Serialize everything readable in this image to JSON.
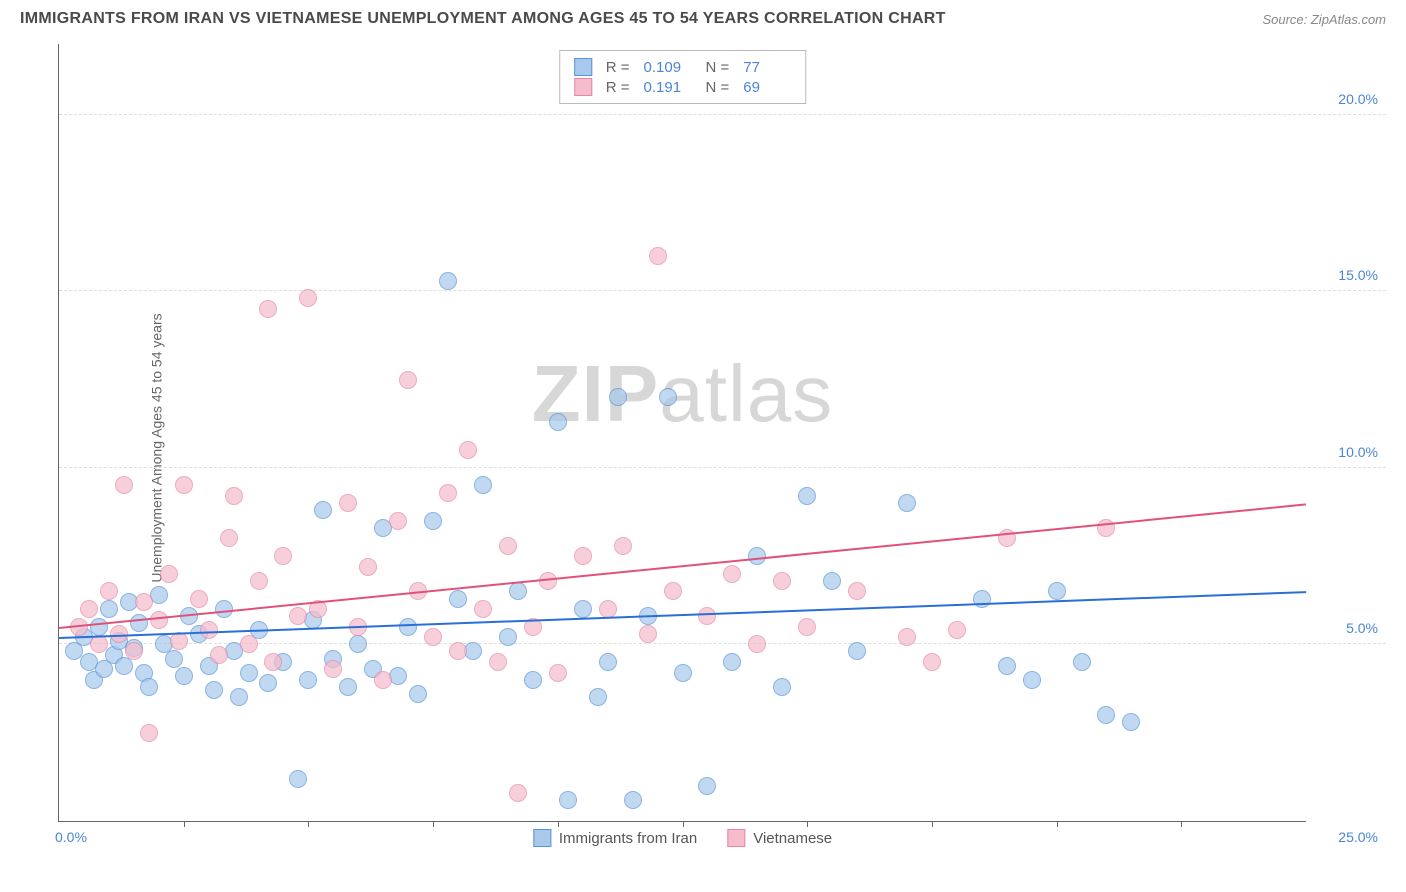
{
  "title": "IMMIGRANTS FROM IRAN VS VIETNAMESE UNEMPLOYMENT AMONG AGES 45 TO 54 YEARS CORRELATION CHART",
  "source": "Source: ZipAtlas.com",
  "ylabel": "Unemployment Among Ages 45 to 54 years",
  "watermark_a": "ZIP",
  "watermark_b": "atlas",
  "chart": {
    "type": "scatter",
    "xlim": [
      0,
      25
    ],
    "ylim": [
      0,
      22
    ],
    "y_ticks": [
      5,
      10,
      15,
      20
    ],
    "y_tick_labels": [
      "5.0%",
      "10.0%",
      "15.0%",
      "20.0%"
    ],
    "x_corner_min": "0.0%",
    "x_corner_max": "25.0%",
    "x_minor_ticks": [
      2.5,
      5,
      7.5,
      10,
      12.5,
      15,
      17.5,
      20,
      22.5
    ],
    "background_color": "#ffffff",
    "grid_color": "#dddddd",
    "axis_color": "#666666",
    "tick_label_color": "#4a85d8",
    "marker_radius": 9,
    "marker_fill_opacity": 0.35,
    "series": [
      {
        "name": "Immigrants from Iran",
        "color_stroke": "#5a94d8",
        "color_fill": "#a8c8ec",
        "r": "0.109",
        "n": "77",
        "trend": {
          "x1": 0,
          "y1": 5.2,
          "x2": 25,
          "y2": 6.5,
          "color": "#2a6fd6",
          "width": 2
        },
        "points": [
          [
            0.3,
            4.8
          ],
          [
            0.5,
            5.2
          ],
          [
            0.6,
            4.5
          ],
          [
            0.7,
            4.0
          ],
          [
            0.8,
            5.5
          ],
          [
            0.9,
            4.3
          ],
          [
            1.0,
            6.0
          ],
          [
            1.1,
            4.7
          ],
          [
            1.2,
            5.1
          ],
          [
            1.3,
            4.4
          ],
          [
            1.4,
            6.2
          ],
          [
            1.5,
            4.9
          ],
          [
            1.6,
            5.6
          ],
          [
            1.7,
            4.2
          ],
          [
            1.8,
            3.8
          ],
          [
            2.0,
            6.4
          ],
          [
            2.1,
            5.0
          ],
          [
            2.3,
            4.6
          ],
          [
            2.5,
            4.1
          ],
          [
            2.6,
            5.8
          ],
          [
            2.8,
            5.3
          ],
          [
            3.0,
            4.4
          ],
          [
            3.1,
            3.7
          ],
          [
            3.3,
            6.0
          ],
          [
            3.5,
            4.8
          ],
          [
            3.6,
            3.5
          ],
          [
            3.8,
            4.2
          ],
          [
            4.0,
            5.4
          ],
          [
            4.2,
            3.9
          ],
          [
            4.5,
            4.5
          ],
          [
            4.8,
            1.2
          ],
          [
            5.0,
            4.0
          ],
          [
            5.1,
            5.7
          ],
          [
            5.3,
            8.8
          ],
          [
            5.5,
            4.6
          ],
          [
            5.8,
            3.8
          ],
          [
            6.0,
            5.0
          ],
          [
            6.3,
            4.3
          ],
          [
            6.5,
            8.3
          ],
          [
            6.8,
            4.1
          ],
          [
            7.0,
            5.5
          ],
          [
            7.2,
            3.6
          ],
          [
            7.5,
            8.5
          ],
          [
            7.8,
            15.3
          ],
          [
            8.0,
            6.3
          ],
          [
            8.3,
            4.8
          ],
          [
            8.5,
            9.5
          ],
          [
            9.0,
            5.2
          ],
          [
            9.2,
            6.5
          ],
          [
            9.5,
            4.0
          ],
          [
            10.0,
            11.3
          ],
          [
            10.2,
            0.6
          ],
          [
            10.5,
            6.0
          ],
          [
            10.8,
            3.5
          ],
          [
            11.0,
            4.5
          ],
          [
            11.2,
            12.0
          ],
          [
            11.5,
            0.6
          ],
          [
            11.8,
            5.8
          ],
          [
            12.2,
            12.0
          ],
          [
            12.5,
            4.2
          ],
          [
            13.0,
            1.0
          ],
          [
            13.5,
            4.5
          ],
          [
            14.0,
            7.5
          ],
          [
            14.5,
            3.8
          ],
          [
            15.0,
            9.2
          ],
          [
            15.5,
            6.8
          ],
          [
            16.0,
            4.8
          ],
          [
            17.0,
            9.0
          ],
          [
            18.5,
            6.3
          ],
          [
            19.0,
            4.4
          ],
          [
            19.5,
            4.0
          ],
          [
            20.0,
            6.5
          ],
          [
            20.5,
            4.5
          ],
          [
            21.0,
            3.0
          ],
          [
            21.5,
            2.8
          ]
        ]
      },
      {
        "name": "Vietnamese",
        "color_stroke": "#e589a5",
        "color_fill": "#f5bccc",
        "r": "0.191",
        "n": "69",
        "trend": {
          "x1": 0,
          "y1": 5.5,
          "x2": 25,
          "y2": 9.0,
          "color": "#e0527a",
          "width": 2
        },
        "points": [
          [
            0.4,
            5.5
          ],
          [
            0.6,
            6.0
          ],
          [
            0.8,
            5.0
          ],
          [
            1.0,
            6.5
          ],
          [
            1.2,
            5.3
          ],
          [
            1.3,
            9.5
          ],
          [
            1.5,
            4.8
          ],
          [
            1.7,
            6.2
          ],
          [
            1.8,
            2.5
          ],
          [
            2.0,
            5.7
          ],
          [
            2.2,
            7.0
          ],
          [
            2.4,
            5.1
          ],
          [
            2.5,
            9.5
          ],
          [
            2.8,
            6.3
          ],
          [
            3.0,
            5.4
          ],
          [
            3.2,
            4.7
          ],
          [
            3.4,
            8.0
          ],
          [
            3.5,
            9.2
          ],
          [
            3.8,
            5.0
          ],
          [
            4.0,
            6.8
          ],
          [
            4.2,
            14.5
          ],
          [
            4.3,
            4.5
          ],
          [
            4.5,
            7.5
          ],
          [
            4.8,
            5.8
          ],
          [
            5.0,
            14.8
          ],
          [
            5.2,
            6.0
          ],
          [
            5.5,
            4.3
          ],
          [
            5.8,
            9.0
          ],
          [
            6.0,
            5.5
          ],
          [
            6.2,
            7.2
          ],
          [
            6.5,
            4.0
          ],
          [
            6.8,
            8.5
          ],
          [
            7.0,
            12.5
          ],
          [
            7.2,
            6.5
          ],
          [
            7.5,
            5.2
          ],
          [
            7.8,
            9.3
          ],
          [
            8.0,
            4.8
          ],
          [
            8.2,
            10.5
          ],
          [
            8.5,
            6.0
          ],
          [
            8.8,
            4.5
          ],
          [
            9.0,
            7.8
          ],
          [
            9.2,
            0.8
          ],
          [
            9.5,
            5.5
          ],
          [
            9.8,
            6.8
          ],
          [
            10.0,
            4.2
          ],
          [
            10.5,
            7.5
          ],
          [
            11.0,
            6.0
          ],
          [
            11.3,
            7.8
          ],
          [
            11.8,
            5.3
          ],
          [
            12.0,
            16.0
          ],
          [
            12.3,
            6.5
          ],
          [
            13.0,
            5.8
          ],
          [
            13.5,
            7.0
          ],
          [
            14.0,
            5.0
          ],
          [
            14.5,
            6.8
          ],
          [
            15.0,
            5.5
          ],
          [
            16.0,
            6.5
          ],
          [
            17.0,
            5.2
          ],
          [
            17.5,
            4.5
          ],
          [
            18.0,
            5.4
          ],
          [
            19.0,
            8.0
          ],
          [
            21.0,
            8.3
          ]
        ]
      }
    ]
  },
  "legend_top": {
    "r_label": "R =",
    "n_label": "N ="
  },
  "legend_bottom": {
    "items": [
      "Immigrants from Iran",
      "Vietnamese"
    ]
  }
}
